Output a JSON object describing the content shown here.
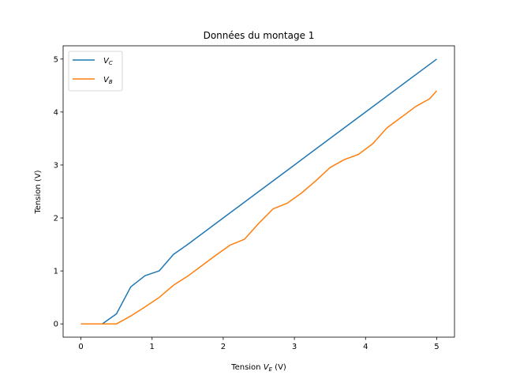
{
  "chart_data": {
    "type": "line",
    "title": "Données du montage 1",
    "xlabel_main": "Tension ",
    "xlabel_var": "V",
    "xlabel_sub": "E",
    "xlabel_unit": " (V)",
    "ylabel": "Tension (V)",
    "xlim": [
      -0.25,
      5.25
    ],
    "ylim": [
      -0.25,
      5.25
    ],
    "xticks": [
      0,
      1,
      2,
      3,
      4,
      5
    ],
    "yticks": [
      0,
      1,
      2,
      3,
      4,
      5
    ],
    "grid": false,
    "legend_position": "top-left",
    "series": [
      {
        "name_main": "V",
        "name_sub": "C",
        "color": "#1f77b4",
        "x": [
          0,
          0.3,
          0.5,
          0.7,
          0.9,
          1.1,
          1.3,
          1.5,
          2.0,
          2.5,
          3.0,
          3.5,
          4.0,
          4.5,
          5.0
        ],
        "y": [
          0,
          0,
          0.19,
          0.7,
          0.91,
          1.0,
          1.31,
          1.5,
          2.0,
          2.5,
          3.0,
          3.5,
          4.0,
          4.5,
          5.0
        ]
      },
      {
        "name_main": "V",
        "name_sub": "B",
        "color": "#ff7f0e",
        "x": [
          0,
          0.3,
          0.5,
          0.7,
          0.9,
          1.1,
          1.3,
          1.5,
          1.7,
          1.9,
          2.1,
          2.3,
          2.5,
          2.7,
          2.9,
          3.1,
          3.3,
          3.5,
          3.7,
          3.9,
          4.1,
          4.3,
          4.5,
          4.7,
          4.9,
          5.0
        ],
        "y": [
          0,
          0,
          0,
          0.15,
          0.32,
          0.5,
          0.73,
          0.9,
          1.1,
          1.3,
          1.49,
          1.6,
          1.9,
          2.17,
          2.28,
          2.47,
          2.7,
          2.95,
          3.1,
          3.2,
          3.4,
          3.7,
          3.9,
          4.1,
          4.25,
          4.4
        ]
      }
    ]
  }
}
